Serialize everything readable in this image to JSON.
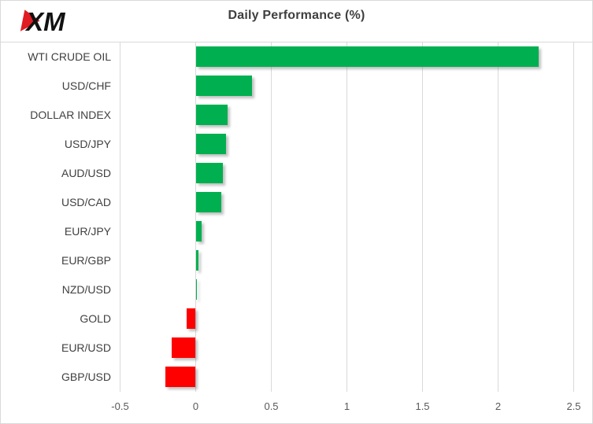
{
  "logo": {
    "text": "XM",
    "accent_color": "#e01b22",
    "text_color": "#121212"
  },
  "title": "Daily Performance (%)",
  "chart_data": {
    "type": "bar",
    "orientation": "horizontal",
    "title": "Daily Performance (%)",
    "categories": [
      "WTI CRUDE OIL",
      "USD/CHF",
      "DOLLAR INDEX",
      "USD/JPY",
      "AUD/USD",
      "USD/CAD",
      "EUR/JPY",
      "EUR/GBP",
      "NZD/USD",
      "GOLD",
      "EUR/USD",
      "GBP/USD"
    ],
    "values": [
      2.27,
      0.37,
      0.21,
      0.2,
      0.18,
      0.17,
      0.04,
      0.02,
      0.01,
      -0.06,
      -0.16,
      -0.2
    ],
    "xlim": [
      -0.5,
      2.5
    ],
    "xticks": [
      -0.5,
      0,
      0.5,
      1,
      1.5,
      2,
      2.5
    ],
    "xtick_labels": [
      "-0.5",
      "0",
      "0.5",
      "1",
      "1.5",
      "2",
      "2.5"
    ],
    "grid": "vertical-gridlines-on",
    "legend": "none",
    "positive_color": "#00b050",
    "negative_color": "#ff0000",
    "gridline_color": "#d9d9d9",
    "label_color": "#404040",
    "tick_label_color": "#595959"
  }
}
